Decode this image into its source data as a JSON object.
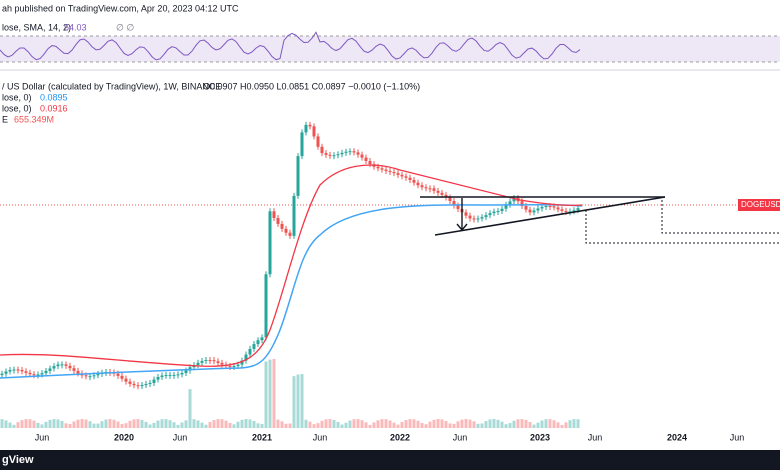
{
  "header": {
    "publisher": "ah published on TradingView.com, Apr 20, 2023 04:12 UTC"
  },
  "rsi_panel": {
    "label": "lose, SMA, 14, 2)",
    "value": "54.03",
    "extra": "∅  ∅"
  },
  "main_panel": {
    "symbol_line": "/ US Dollar (calculated by TradingView), 1W, BINANCE",
    "ohlc": "O0.0907  H0.0950  L0.0851  C0.0897  −0.0010 (−1.10%)",
    "ma1_label": "lose, 0)",
    "ma1_value": "0.0895",
    "ma2_label": "lose, 0)",
    "ma2_value": "0.0916",
    "volume_label": "E",
    "volume_value": "655.349M",
    "price_tag": "DOGEUSD"
  },
  "x_axis": {
    "labels": [
      "Jun",
      "2020",
      "Jun",
      "2021",
      "Jun",
      "2022",
      "Jun",
      "2023",
      "Jun",
      "2024",
      "Jun"
    ]
  },
  "footer": {
    "brand": "gView"
  }
}
